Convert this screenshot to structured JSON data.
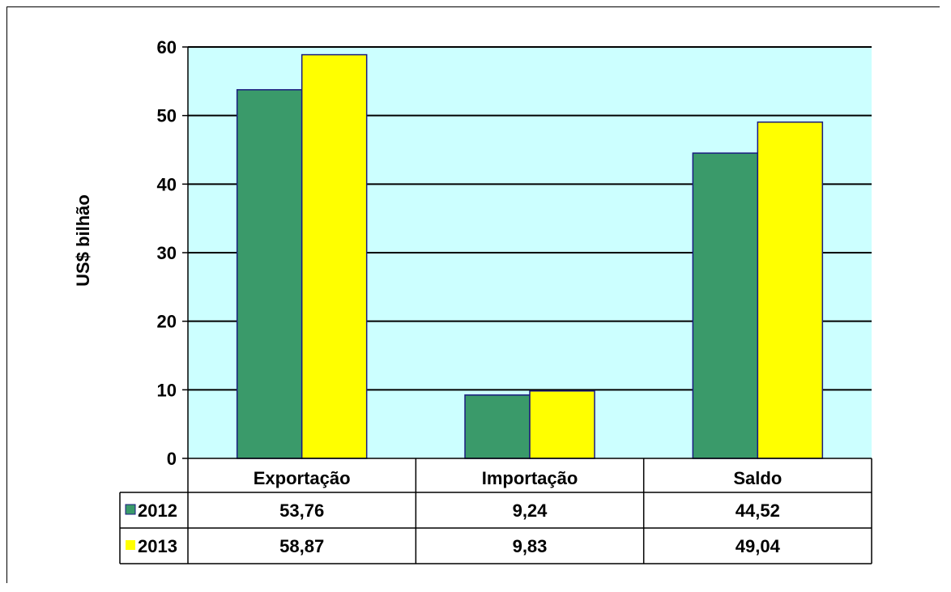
{
  "chart_data": {
    "type": "bar",
    "ylabel": "US$ bilhão",
    "ylim": [
      0,
      60
    ],
    "yticks": [
      "0",
      "10",
      "20",
      "30",
      "40",
      "50",
      "60"
    ],
    "categories": [
      "Exportação",
      "Importação",
      "Saldo"
    ],
    "series": [
      {
        "name": "2012",
        "values": [
          53.76,
          9.24,
          44.52
        ],
        "labels": [
          "53,76",
          "9,24",
          "44,52"
        ],
        "color": "#3a9a6a"
      },
      {
        "name": "2013",
        "values": [
          58.87,
          9.83,
          49.04
        ],
        "labels": [
          "58,87",
          "9,83",
          "49,04"
        ],
        "color": "#ffff00"
      }
    ],
    "plot_background": "#ccffff",
    "bar_border_color": "#1a1a80",
    "grid": true,
    "legend": "data-table-below"
  }
}
